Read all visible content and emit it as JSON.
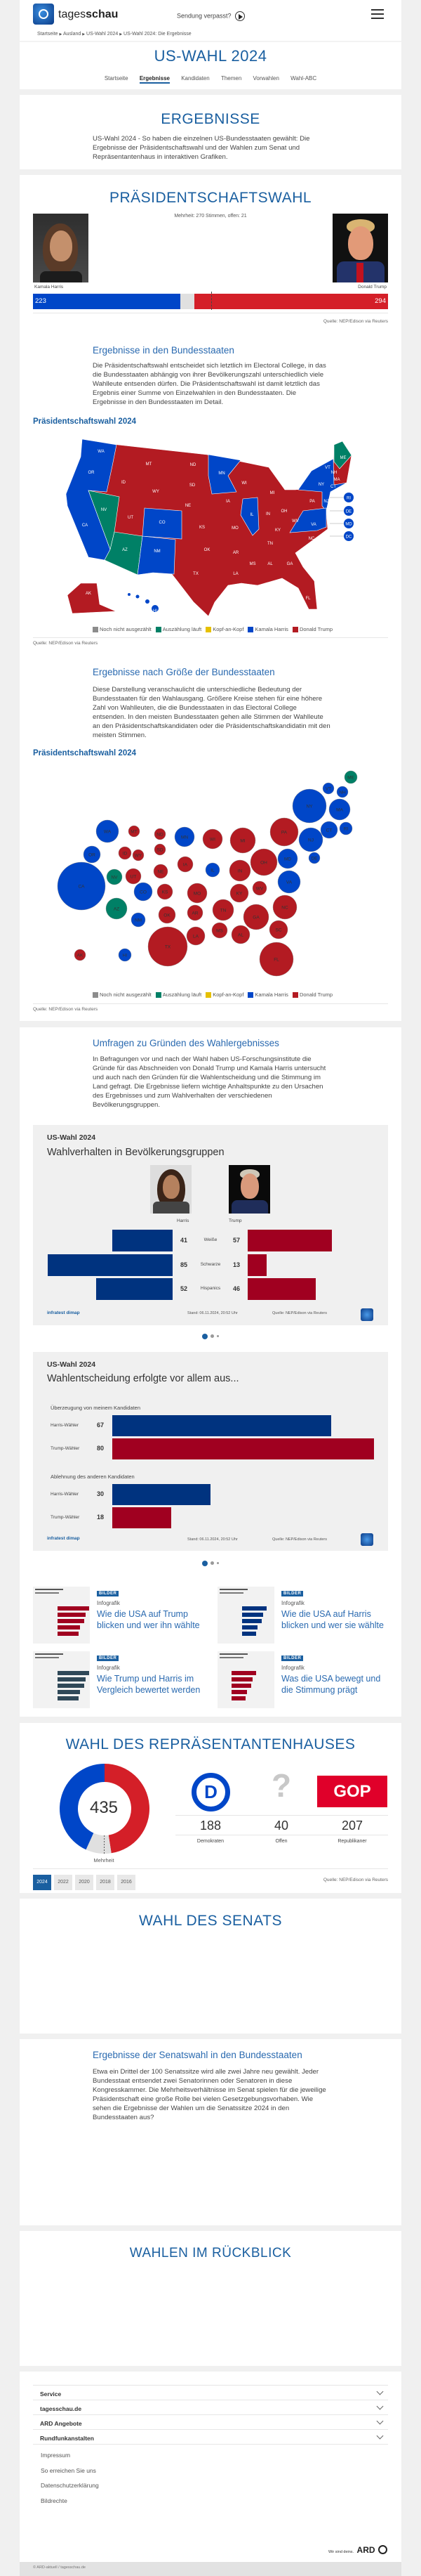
{
  "header": {
    "logo_text_light": "tages",
    "logo_text_bold": "schau",
    "sendung_label": "Sendung verpasst?",
    "breadcrumb": [
      "Startseite",
      "Ausland",
      "US-Wahl 2024",
      "US-Wahl 2024: Die Ergebnisse"
    ],
    "page_title": "US-WAHL 2024",
    "nav": [
      {
        "label": "Startseite",
        "active": false
      },
      {
        "label": "Ergebnisse",
        "active": true
      },
      {
        "label": "Kandidaten",
        "active": false
      },
      {
        "label": "Themen",
        "active": false
      },
      {
        "label": "Vorwahlen",
        "active": false
      },
      {
        "label": "Wahl-ABC",
        "active": false
      }
    ]
  },
  "intro": {
    "title": "ERGEBNISSE",
    "text": "US-Wahl 2024 - So haben die einzelnen US-Bundesstaaten gewählt: Die Ergebnisse der Präsidentschaftswahl und der Wahlen zum Senat und Repräsentantenhaus in interaktiven Grafiken."
  },
  "president": {
    "title": "PRÄSIDENTSCHAFTSWAHL",
    "majority_text": "Mehrheit: 270 Stimmen, offen: 21",
    "harris": {
      "name": "Kamala Harris",
      "votes": "223",
      "value": 223
    },
    "trump": {
      "name": "Donald Trump",
      "votes": "294",
      "value": 294
    },
    "open": 21,
    "majority": 270,
    "source": "Quelle: NEP/Edison via Reuters"
  },
  "states_section": {
    "title": "Ergebnisse in den Bundesstaaten",
    "text": "Die Präsidentschaftswahl entscheidet sich letztlich im Electoral College, in das die Bundesstaaten abhängig von ihrer Bevölkerungszahl unterschiedlich viele Wahlleute entsenden dürfen. Die Präsidentschaftswahl ist damit letztlich das Ergebnis einer Summe von Einzelwahlen in den Bundesstaaten. Die Ergebnisse in den Bundesstaaten im Detail.",
    "chart_title": "Präsidentschaftswahl 2024",
    "source": "Quelle: NEP/Edison via Reuters"
  },
  "legend": [
    {
      "label": "Noch nicht ausgezählt",
      "color": "#8c8c8c"
    },
    {
      "label": "Auszählung läuft",
      "color": "#008066"
    },
    {
      "label": "Kopf-an-Kopf",
      "color": "#e6c000"
    },
    {
      "label": "Kamala Harris",
      "color": "#0046c8"
    },
    {
      "label": "Donald Trump",
      "color": "#b31b22"
    }
  ],
  "colors": {
    "D": "#0046c8",
    "R": "#b31b22",
    "O": "#008066",
    "accent": "#1a5fa0"
  },
  "map_states": {
    "WA": "D",
    "OR": "D",
    "CA": "D",
    "NV": "O",
    "ID": "R",
    "MT": "R",
    "WY": "R",
    "UT": "R",
    "CO": "D",
    "AZ": "O",
    "NM": "D",
    "ND": "R",
    "SD": "R",
    "NE": "R",
    "KS": "R",
    "OK": "R",
    "TX": "R",
    "MN": "D",
    "IA": "R",
    "MO": "R",
    "AR": "R",
    "LA": "R",
    "WI": "R",
    "IL": "D",
    "MI": "R",
    "IN": "R",
    "OH": "R",
    "KY": "R",
    "TN": "R",
    "MS": "R",
    "AL": "R",
    "GA": "R",
    "FL": "R",
    "SC": "R",
    "NC": "R",
    "VA": "D",
    "WV": "R",
    "PA": "R",
    "NY": "D",
    "VT": "D",
    "NH": "D",
    "ME": "O",
    "MA": "D",
    "CT": "D",
    "NJ": "D",
    "AK": "R",
    "HI": "D",
    "RI": "D",
    "DE": "D",
    "MD": "D",
    "DC": "D"
  },
  "size_section": {
    "title": "Ergebnisse nach Größe der Bundesstaaten",
    "text": "Diese Darstellung veranschaulicht die unterschiedliche Bedeutung der Bundesstaaten für den Wahlausgang. Größere Kreise stehen für eine höhere Zahl von Wahlleuten, die die Bundesstaaten in das Electoral College entsenden. In den meisten Bundesstaaten gehen alle Stimmen der Wahlleute an den Präsidentschaftskandidaten oder die Präsidentschaftskandidatin mit den meisten Stimmen.",
    "chart_title": "Präsidentschaftswahl 2024",
    "source": "Quelle: NEP/Edison via Reuters"
  },
  "polls": {
    "title": "Umfragen zu Gründen des Wahlergebnisses",
    "text": "In Befragungen vor und nach der Wahl haben US-Forschungsinstitute die Gründe für das Abschneiden von Donald Trump und Kamala Harris untersucht und auch nach den Gründen für die Wahlentscheidung und die Stimmung im Land gefragt. Die Ergebnisse liefern wichtige Anhaltspunkte zu den Ursachen des Ergebnisses und zum Wahlverhalten der verschiedenen Bevölkerungsgruppen.",
    "brand": "infratest dimap",
    "stand": "Stand:  06.11.2024, 20:52 Uhr",
    "source": "Quelle: NEP/Edison via Reuters"
  },
  "chart_data": [
    {
      "type": "bar",
      "kicker": "US-Wahl 2024",
      "title": "Wahlverhalten in Bevölkerungsgruppen",
      "categories": [
        "Weiße",
        "Schwarze",
        "Hispanics"
      ],
      "series": [
        {
          "name": "Harris",
          "values": [
            41,
            85,
            52
          ]
        },
        {
          "name": "Trump",
          "values": [
            57,
            13,
            46
          ]
        }
      ]
    },
    {
      "type": "bar",
      "kicker": "US-Wahl 2024",
      "title": "Wahlentscheidung erfolgte vor allem aus...",
      "groups": [
        {
          "label": "Überzeugung von meinem Kandidaten",
          "rows": [
            {
              "name": "Harris-Wähler",
              "value": 67
            },
            {
              "name": "Trump-Wähler",
              "value": 80
            }
          ]
        },
        {
          "label": "Ablehnung des anderen Kandidaten",
          "rows": [
            {
              "name": "Harris-Wähler",
              "value": 30
            },
            {
              "name": "Trump-Wähler",
              "value": 18
            }
          ]
        }
      ]
    },
    {
      "type": "pie",
      "title": "WAHL DES REPRÄSENTANTENHAUSES",
      "total": "435",
      "total_label": "Mehrheit",
      "categories": [
        "Demokraten",
        "Offen",
        "Republikaner"
      ],
      "values": [
        188,
        40,
        207
      ],
      "display": [
        "188",
        "40",
        "207"
      ]
    }
  ],
  "teasers": [
    {
      "badge": "BILDER",
      "kind": "Infografik",
      "title": "Wie die USA auf Trump blicken und wer ihn wählte"
    },
    {
      "badge": "BILDER",
      "kind": "Infografik",
      "title": "Wie die USA auf Harris blicken und wer sie wählte"
    },
    {
      "badge": "BILDER",
      "kind": "Infografik",
      "title": "Wie Trump und Harris im Vergleich bewertet werden"
    },
    {
      "badge": "BILDER",
      "kind": "Infografik",
      "title": "Was die USA bewegt und die Stimmung prägt"
    }
  ],
  "house": {
    "gop_logo": "GOP",
    "dem_logo": "D",
    "years": [
      "2024",
      "2022",
      "2020",
      "2018",
      "2016"
    ],
    "active_year": "2024",
    "source": "Quelle: NEP/Edison via Reuters"
  },
  "senate": {
    "title": "WAHL DES SENATS"
  },
  "senate_states": {
    "title": "Ergebnisse der Senatswahl in den Bundesstaaten",
    "text": "Etwa ein Drittel der 100 Senatssitze wird alle zwei Jahre neu gewählt. Jeder Bundesstaat entsendet zwei Senatorinnen oder Senatoren in diese Kongresskammer. Die Mehrheitsverhältnisse im Senat spielen für die jeweilige Präsidentschaft eine große Rolle bei vielen Gesetzgebungsvorhaben. Wie sehen die Ergebnisse der Wahlen um die Senatssitze 2024 in den Bundesstaaten aus?"
  },
  "history": {
    "title": "WAHLEN IM RÜCKBLICK"
  },
  "footer": {
    "accordion": [
      "Service",
      "tagesschau.de",
      "ARD Angebote",
      "Rundfunkanstalten"
    ],
    "links": [
      "Impressum",
      "So erreichen Sie uns",
      "Datenschutzerklärung",
      "Bildrechte"
    ],
    "ard_claim": "Wir sind deins.",
    "ard_logo": "ARD",
    "copyright": "© ARD-aktuell / tagesschau.de"
  }
}
